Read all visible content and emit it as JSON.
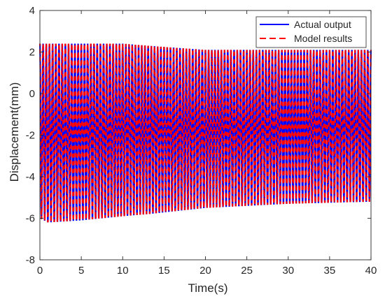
{
  "chart_data": {
    "type": "line",
    "xlabel": "Time(s)",
    "ylabel": "Displacement(mm)",
    "xlim": [
      0,
      40
    ],
    "ylim": [
      -8,
      4
    ],
    "xticks": [
      0,
      5,
      10,
      15,
      20,
      25,
      30,
      35,
      40
    ],
    "yticks": [
      -8,
      -6,
      -4,
      -2,
      0,
      2,
      4
    ],
    "xtick_labels": [
      "0",
      "5",
      "10",
      "15",
      "20",
      "25",
      "30",
      "35",
      "40"
    ],
    "ytick_labels": [
      "-8",
      "-6",
      "-4",
      "-2",
      "0",
      "2",
      "4"
    ],
    "grid": false,
    "legend_position": "top-right",
    "signal": {
      "frequency_hz": 2.6,
      "envelope_time": [
        0,
        1,
        5,
        10,
        13,
        20,
        30,
        40
      ],
      "envelope_max": [
        2.4,
        2.4,
        2.4,
        2.4,
        2.3,
        2.1,
        2.1,
        2.1
      ],
      "envelope_min": [
        -6.0,
        -6.2,
        -6.1,
        -5.9,
        -5.8,
        -5.5,
        -5.3,
        -5.2
      ]
    },
    "series": [
      {
        "name": "Actual output",
        "color": "#0000ff",
        "style": "solid"
      },
      {
        "name": "Model results",
        "color": "#ff0000",
        "style": "dashed"
      }
    ]
  }
}
